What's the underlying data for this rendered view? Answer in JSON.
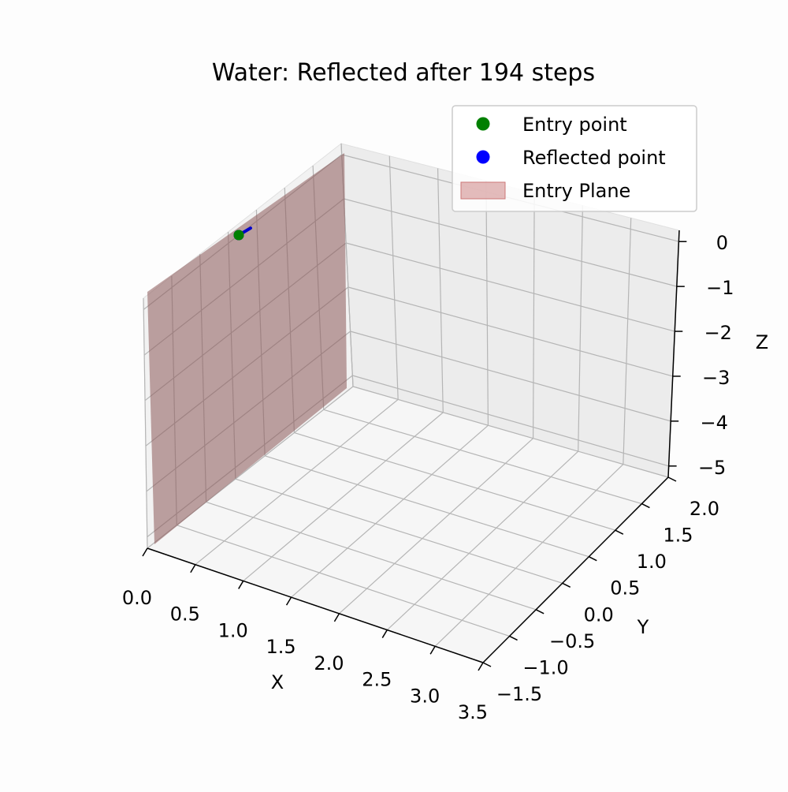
{
  "chart_data": {
    "type": "scatter",
    "title": "Water: Reflected after 194 steps",
    "xlabel": "X",
    "ylabel": "Y",
    "zlabel": "Z",
    "xlim": [
      0.0,
      3.5
    ],
    "ylim": [
      -1.5,
      2.0
    ],
    "zlim": [
      -5.25,
      0.25
    ],
    "x_ticks": [
      "0.0",
      "0.5",
      "1.0",
      "1.5",
      "2.0",
      "2.5",
      "3.0",
      "3.5"
    ],
    "y_ticks": [
      "−1.5",
      "−1.0",
      "−0.5",
      "0.0",
      "0.5",
      "1.0",
      "1.5",
      "2.0"
    ],
    "z_ticks": [
      "0",
      "−1",
      "−2",
      "−3",
      "−4",
      "−5"
    ],
    "grid": true,
    "legend_position": "top-right",
    "legend": [
      {
        "label": "Entry point",
        "marker": "circle",
        "color": "#008000"
      },
      {
        "label": "Reflected point",
        "marker": "circle",
        "color": "#0000ff"
      },
      {
        "label": "Entry Plane",
        "marker": "patch",
        "color": "#d9a0a0"
      }
    ],
    "plane": {
      "name": "Entry Plane",
      "x": 0.0,
      "color": "#8c5a5a",
      "opacity": 0.55
    },
    "points": [
      {
        "name": "Entry point",
        "x": 0.0,
        "y": 0.0,
        "z": 0.0,
        "color": "#008000"
      },
      {
        "name": "Reflected point",
        "x": 0.0,
        "y": 0.0,
        "z": 0.0,
        "color": "#0000ff"
      }
    ],
    "path": {
      "color": "#0000cc",
      "points": [
        [
          0.0,
          0.0,
          0.0
        ],
        [
          0.0,
          0.2,
          -0.05
        ]
      ]
    }
  }
}
